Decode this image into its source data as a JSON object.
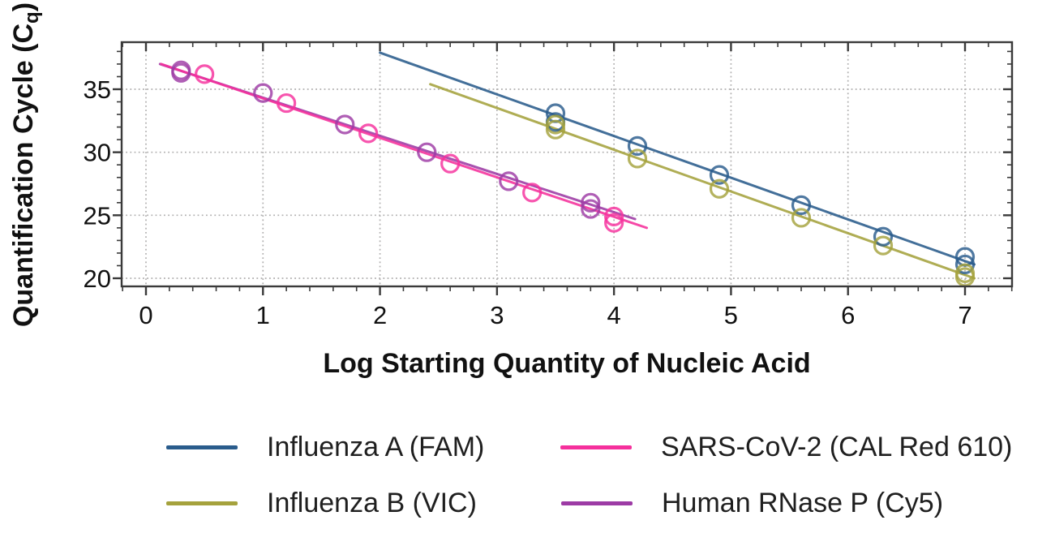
{
  "chart_data": {
    "type": "scatter",
    "title": "",
    "xlabel": "Log Starting Quantity of Nucleic Acid",
    "ylabel": "Quantification Cycle (Cq)",
    "ylabel_parts": {
      "main": "Quantification Cycle (C",
      "sub": "q",
      "end": ")"
    },
    "xlim": [
      -0.21,
      7.4
    ],
    "ylim": [
      19.35,
      38.75
    ],
    "x_major_ticks": [
      0,
      1,
      2,
      3,
      4,
      5,
      6,
      7
    ],
    "y_major_ticks": [
      20,
      25,
      30,
      35
    ],
    "x_minor_step": 0.2,
    "y_minor_step": 1,
    "grid": "dotted gray lines at major ticks, both axes",
    "legend_position": "bottom, two columns",
    "series": [
      {
        "name": "Influenza A (FAM)",
        "color": "#2a5c8c",
        "points": [
          [
            3.5,
            33.1
          ],
          [
            3.5,
            32.4
          ],
          [
            4.2,
            30.5
          ],
          [
            4.9,
            28.2
          ],
          [
            5.6,
            25.8
          ],
          [
            6.3,
            23.3
          ],
          [
            7.0,
            21.7
          ],
          [
            7.0,
            21.1
          ]
        ],
        "trend": {
          "x1": 2.0,
          "y1": 37.9,
          "x2": 7.08,
          "y2": 21.1
        }
      },
      {
        "name": "Influenza B (VIC)",
        "color": "#a5a23d",
        "points": [
          [
            3.5,
            32.2
          ],
          [
            3.5,
            31.8
          ],
          [
            4.2,
            29.5
          ],
          [
            4.9,
            27.1
          ],
          [
            5.6,
            24.8
          ],
          [
            6.3,
            22.6
          ],
          [
            7.0,
            20.4
          ],
          [
            7.0,
            20.1
          ]
        ],
        "trend": {
          "x1": 2.43,
          "y1": 35.4,
          "x2": 7.08,
          "y2": 20.0
        }
      },
      {
        "name": "Human RNase P (Cy5)",
        "color": "#9d3ba5",
        "points": [
          [
            0.3,
            36.5
          ],
          [
            0.3,
            36.3
          ],
          [
            1.0,
            34.7
          ],
          [
            1.7,
            32.2
          ],
          [
            2.4,
            30.0
          ],
          [
            3.1,
            27.7
          ],
          [
            3.8,
            26.0
          ],
          [
            3.8,
            25.5
          ]
        ],
        "trend": {
          "x1": 0.12,
          "y1": 37.0,
          "x2": 4.18,
          "y2": 24.7
        }
      },
      {
        "name": "SARS-CoV-2 (CAL Red 610)",
        "color": "#f5309c",
        "points": [
          [
            0.5,
            36.2
          ],
          [
            1.2,
            33.9
          ],
          [
            1.9,
            31.5
          ],
          [
            2.6,
            29.1
          ],
          [
            3.3,
            26.8
          ],
          [
            4.0,
            24.9
          ],
          [
            4.0,
            24.4
          ]
        ],
        "trend": {
          "x1": 0.13,
          "y1": 37.0,
          "x2": 4.28,
          "y2": 24.0
        }
      }
    ],
    "colors": {
      "grid": "#b0afaf",
      "axis": "#3a3a3a",
      "text": "#111111"
    }
  },
  "legend": {
    "items": [
      {
        "label": "Influenza A (FAM)",
        "color": "#2a5c8c"
      },
      {
        "label": "SARS-CoV-2 (CAL Red 610)",
        "color": "#f5309c"
      },
      {
        "label": "Influenza B (VIC)",
        "color": "#a5a23d"
      },
      {
        "label": "Human RNase P (Cy5)",
        "color": "#9d3ba5"
      }
    ]
  }
}
